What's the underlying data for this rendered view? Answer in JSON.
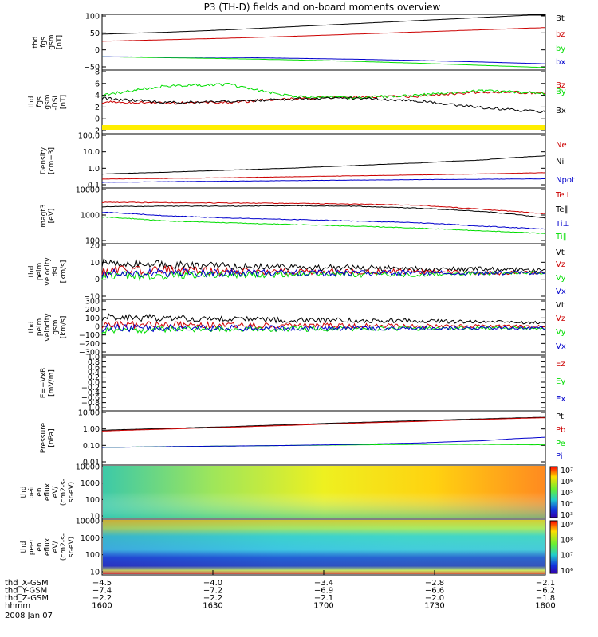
{
  "title": "P3 (TH-D) fields and on-board moments overview",
  "date_label": "2008 Jan 07",
  "colors": {
    "black": "#000000",
    "red": "#cc0000",
    "green": "#00dd00",
    "blue": "#0000cc",
    "yellow": "#ffee00"
  },
  "chart_data": [
    {
      "id": "fgs",
      "type": "line",
      "ylabel": [
        "thd",
        "fgs",
        "gsm",
        "[nT]"
      ],
      "yticks": [
        "100",
        "50",
        "0",
        "−50"
      ],
      "ylim": [
        -70,
        110
      ],
      "series": [
        {
          "name": "Bt",
          "color": "#000000",
          "values": [
            46,
            52,
            60,
            70,
            80,
            90,
            100,
            110
          ]
        },
        {
          "name": "bz",
          "color": "#cc0000",
          "values": [
            23,
            28,
            33,
            39,
            46,
            53,
            60,
            67
          ]
        },
        {
          "name": "by",
          "color": "#00dd00",
          "values": [
            -27,
            -30,
            -33,
            -37,
            -42,
            -48,
            -55,
            -62
          ]
        },
        {
          "name": "bx",
          "color": "#0000cc",
          "values": [
            -27,
            -28,
            -29,
            -32,
            -35,
            -39,
            -44,
            -50
          ]
        }
      ]
    },
    {
      "id": "fgm",
      "type": "line",
      "ylabel": [
        "thd",
        "fgs",
        "gsm",
        "-DSL",
        "[nT]"
      ],
      "yticks": [
        "8",
        "6",
        "4",
        "2",
        "0",
        "−2"
      ],
      "ylim": [
        -3.5,
        8.5
      ],
      "series": [
        {
          "name": "Bz",
          "color": "#cc0000",
          "values": [
            2.5,
            2.3,
            2.4,
            3.2,
            3.4,
            3.6,
            4.4,
            4.2
          ]
        },
        {
          "name": "By",
          "color": "#00dd00",
          "values": [
            3.8,
            5.5,
            5.8,
            3.5,
            3.3,
            3.8,
            4.6,
            4.1
          ]
        },
        {
          "name": "Bx",
          "color": "#000000",
          "values": [
            3.2,
            2.4,
            2.6,
            3.0,
            3.2,
            2.7,
            1.4,
            0.6
          ]
        }
      ]
    },
    {
      "id": "density",
      "type": "line",
      "ylabel": [
        "Density",
        "[cm−3]"
      ],
      "yticks": [
        "100.0",
        "10.0",
        "1.0",
        "0.1"
      ],
      "log": true,
      "ylim": [
        0.1,
        200
      ],
      "series": [
        {
          "name": "Ne",
          "color": "#cc0000",
          "values": [
            0.35,
            0.38,
            0.42,
            0.48,
            0.55,
            0.62,
            0.72,
            0.85
          ]
        },
        {
          "name": "Ni",
          "color": "#000000",
          "values": [
            0.7,
            0.9,
            1.2,
            1.6,
            2.3,
            3.3,
            5,
            9
          ]
        },
        {
          "name": "Npot",
          "color": "#0000cc",
          "values": [
            0.22,
            0.24,
            0.26,
            0.28,
            0.3,
            0.32,
            0.34,
            0.36
          ]
        }
      ]
    },
    {
      "id": "temp",
      "type": "line",
      "ylabel": [
        "magt3",
        "[eV]"
      ],
      "yticks": [
        "10000",
        "1000",
        "100"
      ],
      "log": true,
      "ylim": [
        100,
        12000
      ],
      "series": [
        {
          "name": "Te⊥",
          "color": "#cc0000",
          "values": [
            3500,
            3400,
            3300,
            3200,
            3000,
            2700,
            1900,
            1300
          ]
        },
        {
          "name": "Te‖",
          "color": "#000000",
          "values": [
            2400,
            2500,
            2500,
            2600,
            2500,
            2100,
            1600,
            900
          ]
        },
        {
          "name": "Ti⊥",
          "color": "#0000cc",
          "values": [
            1500,
            1100,
            900,
            800,
            700,
            600,
            450,
            350
          ]
        },
        {
          "name": "Ti‖",
          "color": "#00dd00",
          "values": [
            1000,
            700,
            600,
            520,
            450,
            380,
            300,
            240
          ]
        }
      ]
    },
    {
      "id": "vdsl",
      "type": "line",
      "ylabel": [
        "thd",
        "peim",
        "velocity",
        "dsl",
        "[km/s]"
      ],
      "yticks": [
        "20",
        "10",
        "0",
        "−10"
      ],
      "ylim": [
        -20,
        22
      ],
      "series": [
        {
          "name": "Vt",
          "color": "#000000",
          "values": [
            8,
            6,
            5,
            4,
            4,
            3,
            3,
            2
          ]
        },
        {
          "name": "Vz",
          "color": "#cc0000",
          "values": [
            2,
            2,
            1,
            1,
            1,
            1,
            0,
            0
          ]
        },
        {
          "name": "Vy",
          "color": "#00dd00",
          "values": [
            -2,
            -2,
            -1,
            -1,
            -1,
            -1,
            0,
            0
          ]
        },
        {
          "name": "Vx",
          "color": "#0000cc",
          "values": [
            0,
            0,
            0,
            0,
            0,
            0,
            0,
            0
          ]
        }
      ]
    },
    {
      "id": "vgsm",
      "type": "line",
      "ylabel": [
        "thd",
        "peim",
        "velocity",
        "gsm",
        "[km/s]"
      ],
      "yticks": [
        "300",
        "200",
        "100",
        "0",
        "−100",
        "−200",
        "−300"
      ],
      "ylim": [
        -300,
        320
      ],
      "series": [
        {
          "name": "Vt",
          "color": "#000000",
          "values": [
            120,
            110,
            100,
            90,
            85,
            80,
            70,
            60
          ]
        },
        {
          "name": "Vz",
          "color": "#cc0000",
          "values": [
            40,
            35,
            30,
            30,
            25,
            25,
            20,
            20
          ]
        },
        {
          "name": "Vy",
          "color": "#00dd00",
          "values": [
            -20,
            -15,
            -10,
            -10,
            -5,
            -5,
            0,
            0
          ]
        },
        {
          "name": "Vx",
          "color": "#0000cc",
          "values": [
            0,
            0,
            0,
            0,
            0,
            0,
            0,
            0
          ]
        }
      ]
    },
    {
      "id": "efield",
      "type": "line",
      "ylabel": [
        "E=−VxB",
        "[mV/m]"
      ],
      "yticks": [
        "1.0",
        "0.8",
        "0.6",
        "0.4",
        "0.2",
        "0.0",
        "−0.2",
        "−0.4",
        "−0.6",
        "−0.8",
        "−1.0"
      ],
      "ylim": [
        -1,
        1
      ],
      "series": [
        {
          "name": "Ez",
          "color": "#cc0000",
          "values": []
        },
        {
          "name": "Ey",
          "color": "#00dd00",
          "values": []
        },
        {
          "name": "Ex",
          "color": "#0000cc",
          "values": []
        }
      ]
    },
    {
      "id": "pressure",
      "type": "line",
      "ylabel": [
        "Pressure",
        "[nPa]"
      ],
      "yticks": [
        "10.00",
        "1.00",
        "0.10",
        "0.01"
      ],
      "log": true,
      "ylim": [
        0.01,
        12
      ],
      "series": [
        {
          "name": "Pt",
          "color": "#000000",
          "values": [
            0.95,
            1.2,
            1.5,
            2.0,
            2.6,
            3.3,
            4.2,
            5.2
          ]
        },
        {
          "name": "Pb",
          "color": "#cc0000",
          "values": [
            0.85,
            1.1,
            1.4,
            1.8,
            2.4,
            3.0,
            3.9,
            4.9
          ]
        },
        {
          "name": "Pe",
          "color": "#00dd00",
          "values": [
            0.1,
            0.11,
            0.12,
            0.13,
            0.14,
            0.15,
            0.15,
            0.14
          ]
        },
        {
          "name": "Pi",
          "color": "#0000cc",
          "values": [
            0.1,
            0.11,
            0.12,
            0.13,
            0.15,
            0.18,
            0.24,
            0.38
          ]
        }
      ]
    },
    {
      "id": "peir",
      "type": "heatmap",
      "ylabel": [
        "thd",
        "peir",
        "en",
        "eflux",
        "eV/",
        "(cm2-s-",
        "sr-eV)"
      ],
      "yticks": [
        "10000",
        "1000",
        "100",
        "10"
      ],
      "colorbar_ticks": [
        "10⁷",
        "10⁶",
        "10⁵",
        "10⁴",
        "10³"
      ]
    },
    {
      "id": "peer",
      "type": "heatmap",
      "ylabel": [
        "thd",
        "peer",
        "en",
        "eflux",
        "eV/",
        "(cm2-s-",
        "sr-eV)"
      ],
      "yticks": [
        "10000",
        "1000",
        "100",
        "10"
      ],
      "colorbar_ticks": [
        "10⁹",
        "10⁸",
        "10⁷",
        "10⁶"
      ]
    }
  ],
  "xaxis": {
    "row_labels": [
      "thd_X-GSM",
      "thd_Y-GSM",
      "thd_Z-GSM",
      "hhmm"
    ],
    "ticks": [
      {
        "values": [
          "−4.5",
          "−7.4",
          "−2.2",
          "1600"
        ]
      },
      {
        "values": [
          "−4.0",
          "−7.2",
          "−2.2",
          "1630"
        ]
      },
      {
        "values": [
          "−3.4",
          "−6.9",
          "−2.1",
          "1700"
        ]
      },
      {
        "values": [
          "−2.8",
          "−6.6",
          "−2.0",
          "1730"
        ]
      },
      {
        "values": [
          "−2.1",
          "−6.2",
          "−1.8",
          "1800"
        ]
      }
    ]
  }
}
